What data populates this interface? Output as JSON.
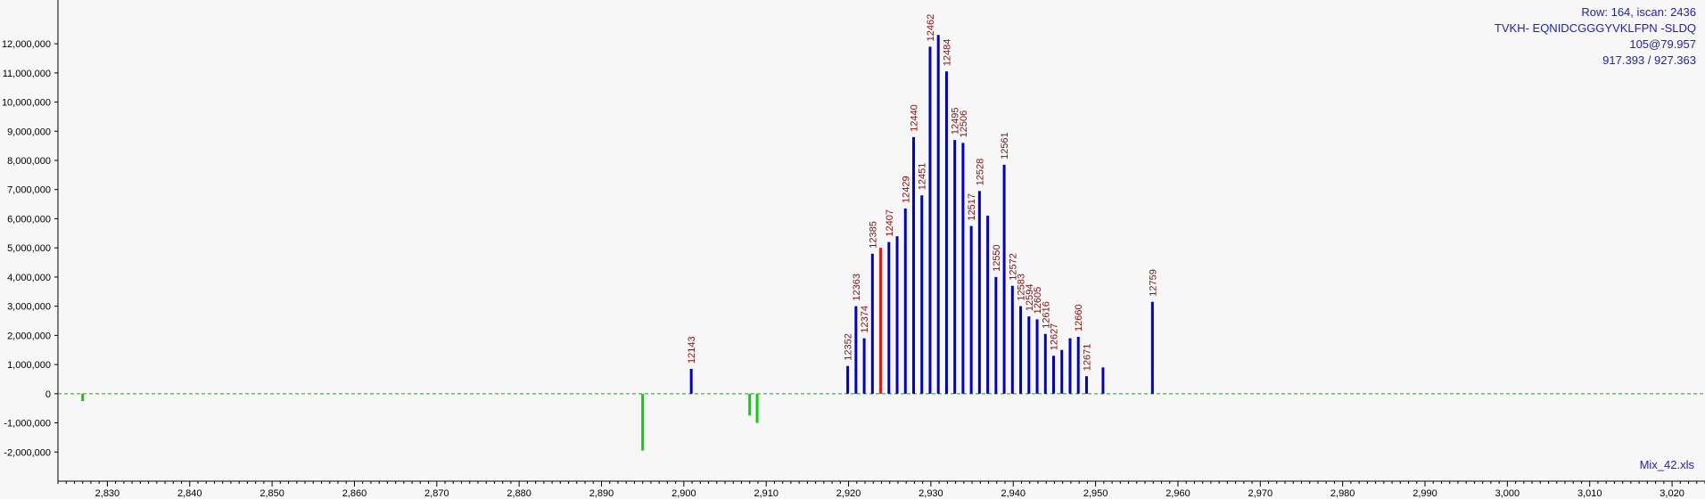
{
  "info": {
    "line1": "Row: 164, iscan: 2436",
    "line2": "TVKH- EQNIDCGGGYVKLFPN -SLDQ",
    "line3": "105@79.957",
    "line4": "917.393 / 927.363"
  },
  "file_label": "Mix_42.xls",
  "colors": {
    "positive": "#0000cc",
    "highlight": "#e8140c",
    "negative": "#10cc10",
    "label": "#8b0d0d",
    "zero_line": "#10b010",
    "info_text": "#1c1cd6",
    "background": "#f7f7f7"
  },
  "chart_data": {
    "type": "bar",
    "xlim": [
      2824,
      3024
    ],
    "ylim": [
      -3000000,
      13500000
    ],
    "x_ticks": [
      2830,
      2840,
      2850,
      2860,
      2870,
      2880,
      2890,
      2900,
      2910,
      2920,
      2930,
      2940,
      2950,
      2960,
      2970,
      2980,
      2990,
      3000,
      3010,
      3020
    ],
    "x_tick_labels": [
      "2,830",
      "2,840",
      "2,850",
      "2,860",
      "2,870",
      "2,880",
      "2,890",
      "2,900",
      "2,910",
      "2,920",
      "2,930",
      "2,940",
      "2,950",
      "2,960",
      "2,970",
      "2,980",
      "2,990",
      "3,000",
      "3,010",
      "3,020"
    ],
    "y_ticks": [
      -2000000,
      -1000000,
      0,
      1000000,
      2000000,
      3000000,
      4000000,
      5000000,
      6000000,
      7000000,
      8000000,
      9000000,
      10000000,
      11000000,
      12000000
    ],
    "y_tick_labels": [
      "-2,000,000",
      "-1,000,000",
      "0",
      "1,000,000",
      "2,000,000",
      "3,000,000",
      "4,000,000",
      "5,000,000",
      "6,000,000",
      "7,000,000",
      "8,000,000",
      "9,000,000",
      "10,000,000",
      "11,000,000",
      "12,000,000"
    ],
    "zero_line": "dashed",
    "series": [
      {
        "points": [
          {
            "x": 2900.9,
            "y": 850000,
            "label": "12143"
          },
          {
            "x": 2919.9,
            "y": 950000,
            "label": "12352"
          },
          {
            "x": 2920.9,
            "y": 3000000,
            "label": "12363"
          },
          {
            "x": 2921.9,
            "y": 1900000,
            "label": "12374"
          },
          {
            "x": 2922.9,
            "y": 4800000,
            "label": "12385"
          },
          {
            "x": 2923.9,
            "y": 5000000,
            "label": "",
            "highlight": true
          },
          {
            "x": 2924.9,
            "y": 5200000,
            "label": "12407"
          },
          {
            "x": 2925.9,
            "y": 5400000,
            "label": ""
          },
          {
            "x": 2926.9,
            "y": 6350000,
            "label": "12429"
          },
          {
            "x": 2927.9,
            "y": 8800000,
            "label": "12440"
          },
          {
            "x": 2928.9,
            "y": 6800000,
            "label": "12451"
          },
          {
            "x": 2929.9,
            "y": 11900000,
            "label": "12462"
          },
          {
            "x": 2930.9,
            "y": 12300000,
            "label": ""
          },
          {
            "x": 2931.9,
            "y": 11050000,
            "label": "12484"
          },
          {
            "x": 2932.9,
            "y": 8700000,
            "label": "12495"
          },
          {
            "x": 2933.9,
            "y": 8600000,
            "label": "12506"
          },
          {
            "x": 2934.9,
            "y": 5750000,
            "label": "12517"
          },
          {
            "x": 2935.9,
            "y": 6950000,
            "label": "12528"
          },
          {
            "x": 2936.9,
            "y": 6100000,
            "label": ""
          },
          {
            "x": 2937.9,
            "y": 4000000,
            "label": "12550"
          },
          {
            "x": 2938.9,
            "y": 7850000,
            "label": "12561"
          },
          {
            "x": 2939.9,
            "y": 3700000,
            "label": "12572"
          },
          {
            "x": 2940.9,
            "y": 3000000,
            "label": "12583"
          },
          {
            "x": 2941.9,
            "y": 2650000,
            "label": "12594"
          },
          {
            "x": 2942.9,
            "y": 2550000,
            "label": "12605"
          },
          {
            "x": 2943.9,
            "y": 2050000,
            "label": "12616"
          },
          {
            "x": 2944.9,
            "y": 1300000,
            "label": "12627"
          },
          {
            "x": 2945.9,
            "y": 1500000,
            "label": ""
          },
          {
            "x": 2946.9,
            "y": 1900000,
            "label": ""
          },
          {
            "x": 2947.9,
            "y": 1950000,
            "label": "12660"
          },
          {
            "x": 2948.9,
            "y": 600000,
            "label": "12671"
          },
          {
            "x": 2950.9,
            "y": 900000,
            "label": ""
          },
          {
            "x": 2956.9,
            "y": 3150000,
            "label": "12759"
          }
        ]
      },
      {
        "points": [
          {
            "x": 2827.0,
            "y": -250000
          },
          {
            "x": 2895.0,
            "y": -1950000
          },
          {
            "x": 2908.0,
            "y": -750000
          },
          {
            "x": 2908.9,
            "y": -1000000
          }
        ]
      }
    ]
  }
}
